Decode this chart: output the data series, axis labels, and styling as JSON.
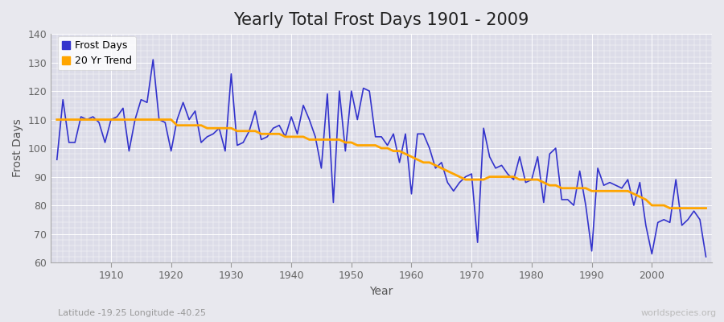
{
  "title": "Yearly Total Frost Days 1901 - 2009",
  "xlabel": "Year",
  "ylabel": "Frost Days",
  "subtitle": "Latitude -19.25 Longitude -40.25",
  "watermark": "worldspecies.org",
  "years": [
    1901,
    1902,
    1903,
    1904,
    1905,
    1906,
    1907,
    1908,
    1909,
    1910,
    1911,
    1912,
    1913,
    1914,
    1915,
    1916,
    1917,
    1918,
    1919,
    1920,
    1921,
    1922,
    1923,
    1924,
    1925,
    1926,
    1927,
    1928,
    1929,
    1930,
    1931,
    1932,
    1933,
    1934,
    1935,
    1936,
    1937,
    1938,
    1939,
    1940,
    1941,
    1942,
    1943,
    1944,
    1945,
    1946,
    1947,
    1948,
    1949,
    1950,
    1951,
    1952,
    1953,
    1954,
    1955,
    1956,
    1957,
    1958,
    1959,
    1960,
    1961,
    1962,
    1963,
    1964,
    1965,
    1966,
    1967,
    1968,
    1969,
    1970,
    1971,
    1972,
    1973,
    1974,
    1975,
    1976,
    1977,
    1978,
    1979,
    1980,
    1981,
    1982,
    1983,
    1984,
    1985,
    1986,
    1987,
    1988,
    1989,
    1990,
    1991,
    1992,
    1993,
    1994,
    1995,
    1996,
    1997,
    1998,
    1999,
    2000,
    2001,
    2002,
    2003,
    2004,
    2005,
    2006,
    2007,
    2008,
    2009
  ],
  "frost_days": [
    96,
    117,
    102,
    102,
    111,
    110,
    111,
    109,
    102,
    110,
    111,
    114,
    99,
    110,
    117,
    116,
    131,
    110,
    109,
    99,
    110,
    116,
    110,
    113,
    102,
    104,
    105,
    107,
    99,
    126,
    101,
    102,
    106,
    113,
    103,
    104,
    107,
    108,
    104,
    111,
    105,
    115,
    110,
    104,
    93,
    119,
    81,
    120,
    99,
    120,
    110,
    121,
    120,
    104,
    104,
    101,
    105,
    95,
    105,
    84,
    105,
    105,
    100,
    93,
    95,
    88,
    85,
    88,
    90,
    91,
    67,
    107,
    97,
    93,
    94,
    91,
    89,
    97,
    88,
    89,
    97,
    81,
    98,
    100,
    82,
    82,
    80,
    92,
    80,
    64,
    93,
    87,
    88,
    87,
    86,
    89,
    80,
    88,
    73,
    63,
    74,
    75,
    74,
    89,
    73,
    75,
    78,
    75,
    62
  ],
  "trend_values": [
    110,
    110,
    110,
    110,
    110,
    110,
    110,
    110,
    110,
    110,
    110,
    110,
    110,
    110,
    110,
    110,
    110,
    110,
    110,
    110,
    108,
    108,
    108,
    108,
    108,
    107,
    107,
    107,
    107,
    107,
    106,
    106,
    106,
    106,
    105,
    105,
    105,
    105,
    104,
    104,
    104,
    104,
    103,
    103,
    103,
    103,
    103,
    103,
    102,
    102,
    101,
    101,
    101,
    101,
    100,
    100,
    99,
    99,
    98,
    97,
    96,
    95,
    95,
    94,
    93,
    92,
    91,
    90,
    89,
    89,
    89,
    89,
    90,
    90,
    90,
    90,
    90,
    89,
    89,
    89,
    89,
    88,
    87,
    87,
    86,
    86,
    86,
    86,
    86,
    85,
    85,
    85,
    85,
    85,
    85,
    85,
    84,
    83,
    82,
    80,
    80,
    80,
    79,
    79,
    79,
    79,
    79,
    79,
    79
  ],
  "line_color": "#3333cc",
  "trend_color": "#ffa500",
  "fig_bg_color": "#e8e8ee",
  "plot_bg_color": "#dcdce8",
  "grid_color": "#ffffff",
  "ylim": [
    60,
    140
  ],
  "yticks": [
    60,
    70,
    80,
    90,
    100,
    110,
    120,
    130,
    140
  ],
  "xlim_start": 1901,
  "xlim_end": 2009,
  "xtick_start": 1905,
  "xtick_step": 10,
  "title_fontsize": 15,
  "label_fontsize": 10,
  "tick_fontsize": 9
}
